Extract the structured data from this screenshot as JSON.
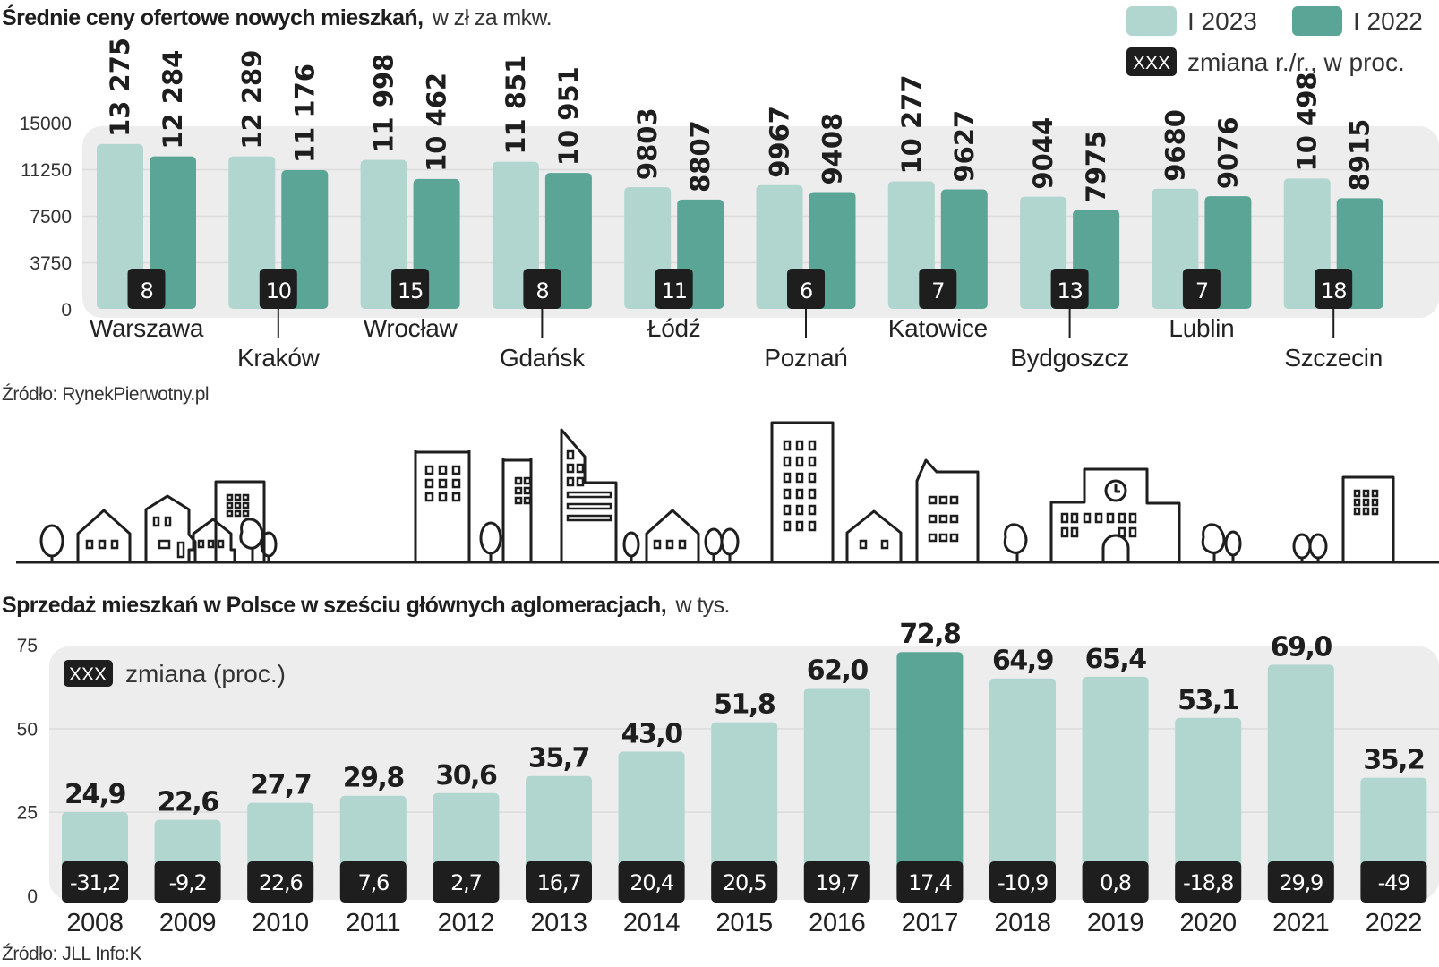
{
  "colors": {
    "series_2023": "#b1d5cf",
    "series_2022": "#5ba597",
    "highlight": "#5ba597",
    "badge": "#1e1e1e",
    "panel": "#ededed",
    "gridline": "#dcdcdc"
  },
  "chart_data": [
    {
      "type": "bar",
      "title": "Średnie ceny ofertowe nowych mieszkań,",
      "subtitle": "w zł za mkw.",
      "xlabel": "",
      "ylabel": "",
      "ylim": [
        0,
        15000
      ],
      "yticks": [
        "0",
        "3750",
        "7500",
        "11250",
        "15000"
      ],
      "grid": true,
      "legend_position": "top-right",
      "legend": [
        {
          "label": "I 2023",
          "series": "I 2023"
        },
        {
          "label": "I 2022",
          "series": "I 2022"
        }
      ],
      "badge_legend": {
        "badge": "XXX",
        "label": "zmiana r./r., w proc."
      },
      "categories": [
        "Warszawa",
        "Kraków",
        "Wrocław",
        "Gdańsk",
        "Łódź",
        "Poznań",
        "Katowice",
        "Bydgoszcz",
        "Lublin",
        "Szczecin"
      ],
      "series": [
        {
          "name": "I 2023",
          "values": [
            13275,
            12289,
            11998,
            11851,
            9803,
            9967,
            10277,
            9044,
            9680,
            10498
          ],
          "labels": [
            "13 275",
            "12 289",
            "11 998",
            "11 851",
            "9803",
            "9967",
            "10 277",
            "9044",
            "9680",
            "10 498"
          ]
        },
        {
          "name": "I 2022",
          "values": [
            12284,
            11176,
            10462,
            10951,
            8807,
            9408,
            9627,
            7975,
            9076,
            8915
          ],
          "labels": [
            "12 284",
            "11 176",
            "10 462",
            "10 951",
            "8807",
            "9408",
            "9627",
            "7975",
            "9076",
            "8915"
          ]
        }
      ],
      "change_yoy_pct": [
        "8",
        "10",
        "15",
        "8",
        "11",
        "6",
        "7",
        "13",
        "7",
        "18"
      ],
      "source": "Źródło: RynekPierwotny.pl"
    },
    {
      "type": "bar",
      "title": "Sprzedaż mieszkań w Polsce w sześciu głównych aglomeracjach,",
      "subtitle": "w tys.",
      "xlabel": "",
      "ylabel": "",
      "ylim": [
        0,
        75
      ],
      "yticks": [
        "0",
        "25",
        "50",
        "75"
      ],
      "grid": true,
      "legend_position": "top-left",
      "badge_legend": {
        "badge": "XXX",
        "label": "zmiana (proc.)"
      },
      "categories": [
        "2008",
        "2009",
        "2010",
        "2011",
        "2012",
        "2013",
        "2014",
        "2015",
        "2016",
        "2017",
        "2018",
        "2019",
        "2020",
        "2021",
        "2022"
      ],
      "values": [
        24.9,
        22.6,
        27.7,
        29.8,
        30.6,
        35.7,
        43.0,
        51.8,
        62.0,
        72.8,
        64.9,
        65.4,
        53.1,
        69.0,
        35.2
      ],
      "labels": [
        "24,9",
        "22,6",
        "27,7",
        "29,8",
        "30,6",
        "35,7",
        "43,0",
        "51,8",
        "62,0",
        "72,8",
        "64,9",
        "65,4",
        "53,1",
        "69,0",
        "35,2"
      ],
      "highlight_category": "2017",
      "change_pct": [
        "-31,2",
        "-9,2",
        "22,6",
        "7,6",
        "2,7",
        "16,7",
        "20,4",
        "20,5",
        "19,7",
        "17,4",
        "-10,9",
        "0,8",
        "-18,8",
        "29,9",
        "-49"
      ],
      "source": "Źródło: JLL  Info:K"
    }
  ],
  "illustration": {
    "name": "city-skyline",
    "elements": [
      "tree",
      "house",
      "narrow-house",
      "apartment-block",
      "bungalow",
      "trees",
      "office-tower",
      "tower",
      "angled-skyscraper",
      "tree",
      "house",
      "trees",
      "tall-tower",
      "small-house",
      "gabled-block",
      "tree",
      "town-hall-with-clock",
      "trees",
      "trees",
      "apartment-block"
    ]
  }
}
